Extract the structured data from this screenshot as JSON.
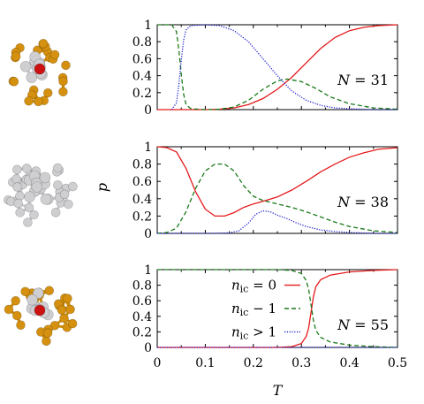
{
  "figure": {
    "ylabel": "p",
    "xlabel": "T",
    "legend": {
      "placement": "bottom-panel-left",
      "entries": [
        {
          "var": "n",
          "sub": "ic",
          "rel": " = 0",
          "series": "red"
        },
        {
          "var": "n",
          "sub": "ic",
          "rel": " − 1",
          "series": "green"
        },
        {
          "var": "n",
          "sub": "ic",
          "rel": " > 1",
          "series": "blue"
        }
      ]
    },
    "colors": {
      "red": "#e41a1c",
      "green": "#1a7a1a",
      "blue": "#2020d0",
      "gold": "#d4900e",
      "silver": "#cfcfd2",
      "center": "#cc1111"
    },
    "clusters": [
      {
        "name": "cluster-31-icon",
        "style": "gold-silver-with-center"
      },
      {
        "name": "cluster-38-icon",
        "style": "silver"
      },
      {
        "name": "cluster-55-icon",
        "style": "gold-silver-with-center"
      }
    ]
  },
  "chart_data": [
    {
      "type": "line",
      "annotation": "N = 31",
      "annotation_var": "N",
      "annotation_val": " = 31",
      "xlim": [
        0,
        0.5
      ],
      "ylim": [
        0,
        1
      ],
      "xticks": [
        "0",
        "0.1",
        "0.2",
        "0.3",
        "0.4",
        "0.5"
      ],
      "yticks": [
        "0",
        "0.2",
        "0.4",
        "0.6",
        "0.8",
        "1"
      ],
      "show_xtick_labels": false,
      "series": [
        {
          "key": "red",
          "style": "solid",
          "x": [
            0,
            0.1,
            0.13,
            0.16,
            0.19,
            0.22,
            0.25,
            0.28,
            0.31,
            0.34,
            0.37,
            0.4,
            0.43,
            0.46,
            0.5
          ],
          "y": [
            0,
            0,
            0.005,
            0.02,
            0.06,
            0.13,
            0.24,
            0.38,
            0.55,
            0.72,
            0.85,
            0.93,
            0.97,
            0.99,
            1.0
          ]
        },
        {
          "key": "green",
          "style": "dashed",
          "x": [
            0,
            0.03,
            0.04,
            0.045,
            0.05,
            0.055,
            0.06,
            0.07,
            0.1,
            0.13,
            0.16,
            0.19,
            0.22,
            0.25,
            0.27,
            0.3,
            0.33,
            0.36,
            0.4,
            0.45,
            0.5
          ],
          "y": [
            1.0,
            1.0,
            0.92,
            0.7,
            0.42,
            0.18,
            0.06,
            0.01,
            0.0,
            0.005,
            0.03,
            0.11,
            0.24,
            0.34,
            0.36,
            0.33,
            0.25,
            0.15,
            0.07,
            0.02,
            0.005
          ]
        },
        {
          "key": "blue",
          "style": "dotted",
          "x": [
            0.03,
            0.04,
            0.045,
            0.05,
            0.055,
            0.06,
            0.07,
            0.1,
            0.13,
            0.16,
            0.19,
            0.22,
            0.25,
            0.28,
            0.31,
            0.34,
            0.37,
            0.4,
            0.45,
            0.5
          ],
          "y": [
            0,
            0.08,
            0.3,
            0.58,
            0.82,
            0.94,
            0.99,
            1.0,
            0.99,
            0.93,
            0.8,
            0.6,
            0.4,
            0.22,
            0.11,
            0.05,
            0.02,
            0.01,
            0.0,
            0.0
          ]
        }
      ]
    },
    {
      "type": "line",
      "annotation": "N = 38",
      "annotation_var": "N",
      "annotation_val": " = 38",
      "xlim": [
        0,
        0.5
      ],
      "ylim": [
        0,
        1
      ],
      "xticks": [
        "0",
        "0.1",
        "0.2",
        "0.3",
        "0.4",
        "0.5"
      ],
      "yticks": [
        "0",
        "0.2",
        "0.4",
        "0.6",
        "0.8",
        "1"
      ],
      "show_xtick_labels": false,
      "series": [
        {
          "key": "red",
          "style": "solid",
          "x": [
            0,
            0.02,
            0.04,
            0.06,
            0.08,
            0.1,
            0.12,
            0.14,
            0.16,
            0.18,
            0.2,
            0.22,
            0.25,
            0.28,
            0.31,
            0.34,
            0.37,
            0.4,
            0.43,
            0.46,
            0.5
          ],
          "y": [
            1.0,
            0.99,
            0.94,
            0.75,
            0.48,
            0.28,
            0.2,
            0.2,
            0.24,
            0.3,
            0.34,
            0.37,
            0.42,
            0.5,
            0.6,
            0.71,
            0.8,
            0.88,
            0.93,
            0.97,
            0.99
          ]
        },
        {
          "key": "green",
          "style": "dashed",
          "x": [
            0,
            0.02,
            0.04,
            0.06,
            0.08,
            0.1,
            0.12,
            0.14,
            0.16,
            0.18,
            0.2,
            0.22,
            0.25,
            0.28,
            0.31,
            0.34,
            0.37,
            0.4,
            0.45,
            0.5
          ],
          "y": [
            0,
            0.01,
            0.06,
            0.25,
            0.52,
            0.72,
            0.8,
            0.8,
            0.72,
            0.55,
            0.43,
            0.38,
            0.34,
            0.3,
            0.25,
            0.19,
            0.13,
            0.08,
            0.03,
            0.01
          ]
        },
        {
          "key": "blue",
          "style": "dotted",
          "x": [
            0,
            0.12,
            0.15,
            0.17,
            0.19,
            0.205,
            0.22,
            0.235,
            0.25,
            0.27,
            0.29,
            0.31,
            0.34,
            0.37,
            0.4,
            0.45,
            0.5
          ],
          "y": [
            0,
            0,
            0.005,
            0.03,
            0.12,
            0.22,
            0.26,
            0.25,
            0.21,
            0.17,
            0.12,
            0.08,
            0.04,
            0.02,
            0.01,
            0.0,
            0.0
          ]
        }
      ]
    },
    {
      "type": "line",
      "annotation": "N = 55",
      "annotation_var": "N",
      "annotation_val": " = 55",
      "xlim": [
        0,
        0.5
      ],
      "ylim": [
        0,
        1
      ],
      "xticks": [
        "0",
        "0.1",
        "0.2",
        "0.3",
        "0.4",
        "0.5"
      ],
      "yticks": [
        "0",
        "0.2",
        "0.4",
        "0.6",
        "0.8",
        "1"
      ],
      "show_xtick_labels": true,
      "series": [
        {
          "key": "red",
          "style": "solid",
          "x": [
            0,
            0.25,
            0.28,
            0.3,
            0.31,
            0.315,
            0.32,
            0.325,
            0.33,
            0.34,
            0.36,
            0.4,
            0.45,
            0.5
          ],
          "y": [
            0,
            0,
            0.01,
            0.05,
            0.14,
            0.25,
            0.45,
            0.65,
            0.78,
            0.87,
            0.93,
            0.97,
            0.99,
            1.0
          ]
        },
        {
          "key": "green",
          "style": "dashed",
          "x": [
            0,
            0.25,
            0.28,
            0.3,
            0.31,
            0.315,
            0.32,
            0.325,
            0.33,
            0.34,
            0.36,
            0.4,
            0.45,
            0.5
          ],
          "y": [
            1.0,
            1.0,
            0.99,
            0.95,
            0.86,
            0.75,
            0.55,
            0.35,
            0.22,
            0.13,
            0.07,
            0.03,
            0.01,
            0.0
          ]
        },
        {
          "key": "blue",
          "style": "dotted",
          "x": [
            0,
            0.5
          ],
          "y": [
            0,
            0
          ]
        }
      ]
    }
  ]
}
